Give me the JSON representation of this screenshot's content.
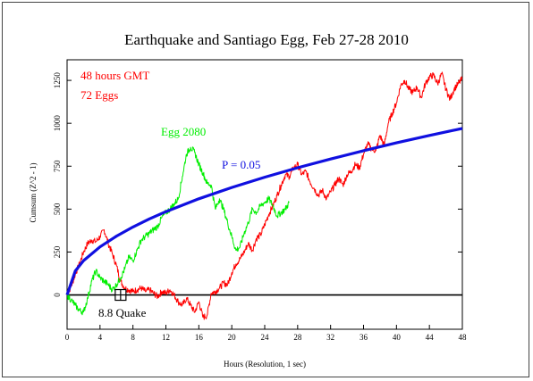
{
  "colors": {
    "background": "#ffffff",
    "axis": "#000000",
    "cumsum_all": "#ff0000",
    "egg_2080": "#00ee00",
    "p05": "#1010e0",
    "quake_marker": "#000000"
  },
  "chart_data": {
    "type": "line",
    "title": "Earthquake and Santiago Egg, Feb 27-28 2010",
    "xlabel": "Hours (Resolution, 1 sec)",
    "ylabel": "Cumsum (Z^2 - 1)",
    "xlim": [
      0,
      48
    ],
    "ylim": [
      -200,
      1370
    ],
    "x_ticks": [
      0,
      4,
      8,
      12,
      16,
      20,
      24,
      28,
      32,
      36,
      40,
      44,
      48
    ],
    "y_ticks": [
      0,
      250,
      500,
      750,
      1000,
      1250
    ],
    "grid": false,
    "annotations": {
      "hours": "48 hours GMT",
      "eggs": "72 Eggs",
      "egg_label": "Egg 2080",
      "p_label": "P = 0.05",
      "quake_label": "8.8 Quake"
    },
    "quake_hour": 6.5,
    "series": [
      {
        "name": "72 Eggs",
        "color": "#ff0000",
        "x": [
          0,
          0.5,
          1,
          1.5,
          2,
          2.5,
          3,
          3.5,
          4,
          4.5,
          5,
          5.5,
          6,
          6.5,
          7,
          7.5,
          8,
          8.5,
          9,
          9.5,
          10,
          10.5,
          11,
          11.5,
          12,
          12.5,
          13,
          13.5,
          14,
          14.5,
          15,
          15.5,
          16,
          16.5,
          17,
          17.5,
          18,
          18.5,
          19,
          19.5,
          20,
          20.5,
          21,
          21.5,
          22,
          22.5,
          23,
          23.5,
          24,
          24.5,
          25,
          25.5,
          26,
          26.5,
          27,
          27.5,
          28,
          28.5,
          29,
          29.5,
          30,
          30.5,
          31,
          31.5,
          32,
          32.5,
          33,
          33.5,
          34,
          34.5,
          35,
          35.5,
          36,
          36.5,
          37,
          37.5,
          38,
          38.5,
          39,
          39.5,
          40,
          40.5,
          41,
          41.5,
          42,
          42.5,
          43,
          43.5,
          44,
          44.5,
          45,
          45.5,
          46,
          46.5,
          47,
          47.5,
          48
        ],
        "y": [
          0,
          50,
          120,
          180,
          250,
          300,
          320,
          310,
          340,
          380,
          300,
          240,
          170,
          80,
          40,
          30,
          20,
          30,
          40,
          20,
          30,
          10,
          -10,
          20,
          10,
          30,
          0,
          -40,
          -60,
          -20,
          -60,
          -100,
          -40,
          -130,
          -120,
          10,
          20,
          40,
          70,
          60,
          130,
          180,
          210,
          250,
          300,
          260,
          330,
          350,
          410,
          470,
          520,
          580,
          640,
          700,
          690,
          740,
          760,
          700,
          720,
          660,
          620,
          580,
          610,
          560,
          600,
          640,
          680,
          640,
          700,
          720,
          760,
          740,
          820,
          880,
          850,
          840,
          930,
          870,
          1000,
          1060,
          1120,
          1220,
          1250,
          1200,
          1180,
          1210,
          1150,
          1230,
          1270,
          1280,
          1230,
          1290,
          1200,
          1140,
          1200,
          1230,
          1260
        ]
      },
      {
        "name": "Egg 2080",
        "color": "#00ee00",
        "x": [
          0,
          0.5,
          1,
          1.5,
          2,
          2.5,
          3,
          3.5,
          4,
          4.5,
          5,
          5.5,
          6,
          6.5,
          7,
          7.5,
          8,
          8.5,
          9,
          9.5,
          10,
          10.5,
          11,
          11.5,
          12,
          12.5,
          13,
          13.5,
          14,
          14.5,
          15,
          15.5,
          16,
          16.5,
          17,
          17.5,
          18,
          18.5,
          19,
          19.5,
          20,
          20.5,
          21,
          21.5,
          22,
          22.5,
          23,
          23.5,
          24,
          24.5,
          25,
          25.5,
          26,
          26.5,
          27
        ],
        "y": [
          0,
          -30,
          -60,
          -90,
          -100,
          -20,
          80,
          140,
          100,
          80,
          60,
          30,
          60,
          100,
          150,
          220,
          200,
          260,
          320,
          340,
          360,
          380,
          400,
          450,
          480,
          500,
          530,
          560,
          690,
          820,
          860,
          830,
          760,
          710,
          650,
          640,
          500,
          560,
          500,
          420,
          340,
          260,
          280,
          360,
          420,
          500,
          480,
          520,
          540,
          560,
          520,
          460,
          480,
          500,
          540
        ]
      },
      {
        "name": "P = 0.05",
        "color": "#1010e0",
        "x": [
          0,
          1,
          2,
          4,
          6,
          8,
          10,
          12,
          16,
          20,
          24,
          28,
          32,
          36,
          40,
          44,
          48
        ],
        "y": [
          0,
          140,
          200,
          280,
          343,
          396,
          443,
          485,
          560,
          626,
          686,
          741,
          792,
          840,
          886,
          929,
          970
        ]
      }
    ]
  }
}
